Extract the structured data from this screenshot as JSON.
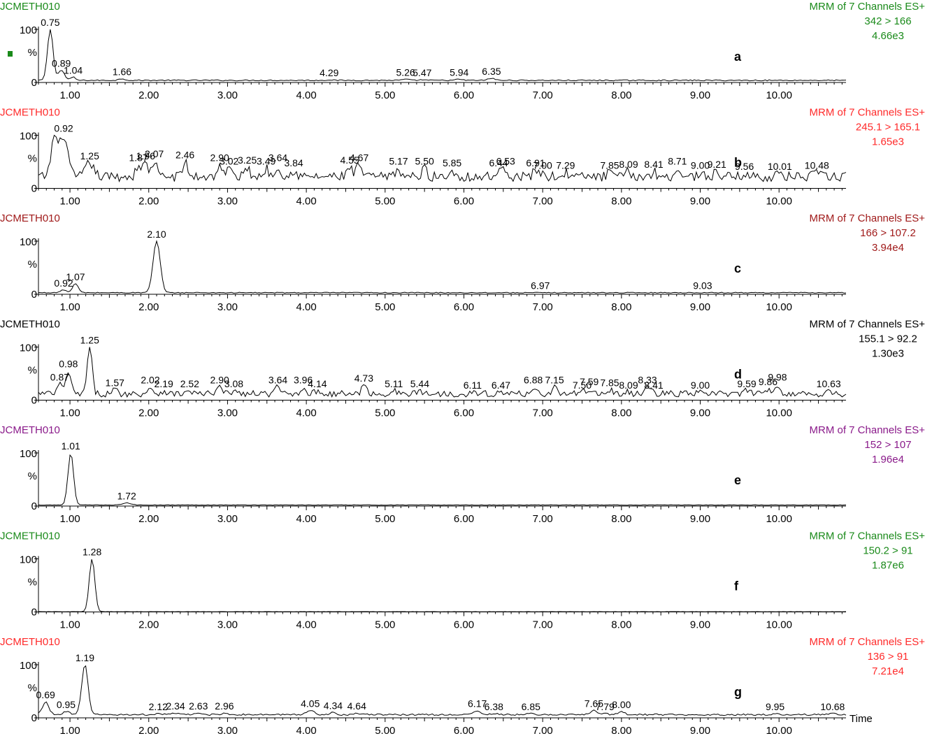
{
  "x_axis_label": "Time",
  "chart_data": [
    {
      "type": "line",
      "panel_label": "a",
      "sample": "JCMETH010",
      "header": "MRM of 7 Channels ES+",
      "transition": "342 > 166",
      "intensity": "4.66e3",
      "color": "#1a8a1a",
      "ylabel": "%",
      "y_ticks": [
        "0",
        "100"
      ],
      "xlim": [
        0.6,
        10.85
      ],
      "ylim": [
        0,
        100
      ],
      "x_ticks": [
        "1.00",
        "2.00",
        "3.00",
        "4.00",
        "5.00",
        "6.00",
        "7.00",
        "8.00",
        "9.00",
        "10.00"
      ],
      "baseline": 4,
      "noise": 1,
      "peaks": [
        {
          "x": 0.75,
          "y": 100,
          "w": 0.035,
          "label": "0.75"
        },
        {
          "x": 0.89,
          "y": 23,
          "w": 0.04,
          "label": "0.89"
        },
        {
          "x": 1.04,
          "y": 10,
          "w": 0.03,
          "label": "1.04"
        },
        {
          "x": 1.66,
          "y": 7,
          "w": 0.04,
          "label": "1.66"
        },
        {
          "x": 4.29,
          "y": 5,
          "w": 0.04,
          "label": "4.29"
        },
        {
          "x": 5.26,
          "y": 6,
          "w": 0.04,
          "label": "5.26"
        },
        {
          "x": 5.47,
          "y": 5,
          "w": 0.04,
          "label": "5.47"
        },
        {
          "x": 5.94,
          "y": 6,
          "w": 0.04,
          "label": "5.94"
        },
        {
          "x": 6.35,
          "y": 8,
          "w": 0.04,
          "label": "6.35"
        }
      ]
    },
    {
      "type": "line",
      "panel_label": "b",
      "sample": "JCMETH010",
      "header": "MRM of 7 Channels ES+",
      "transition": "245.1 > 165.1",
      "intensity": "1.65e3",
      "color": "#ff2a2a",
      "ylabel": "%",
      "y_ticks": [
        "0",
        "100"
      ],
      "xlim": [
        0.6,
        10.85
      ],
      "ylim": [
        0,
        100
      ],
      "x_ticks": [
        "1.00",
        "2.00",
        "3.00",
        "4.00",
        "5.00",
        "6.00",
        "7.00",
        "8.00",
        "9.00",
        "10.00"
      ],
      "baseline": 22,
      "noise": 9,
      "peaks": [
        {
          "x": 0.8,
          "y": 95,
          "w": 0.04,
          "label": ""
        },
        {
          "x": 0.92,
          "y": 100,
          "w": 0.05,
          "label": "0.92"
        },
        {
          "x": 1.25,
          "y": 48,
          "w": 0.05,
          "label": "1.25"
        },
        {
          "x": 1.87,
          "y": 45,
          "w": 0.03,
          "label": "1.87"
        },
        {
          "x": 1.96,
          "y": 48,
          "w": 0.03,
          "label": "1.96"
        },
        {
          "x": 2.07,
          "y": 52,
          "w": 0.03,
          "label": "2.07"
        },
        {
          "x": 2.46,
          "y": 50,
          "w": 0.03,
          "label": "2.46"
        },
        {
          "x": 2.9,
          "y": 45,
          "w": 0.03,
          "label": "2.90"
        },
        {
          "x": 3.02,
          "y": 38,
          "w": 0.03,
          "label": "3.02"
        },
        {
          "x": 3.25,
          "y": 40,
          "w": 0.03,
          "label": "3.25"
        },
        {
          "x": 3.49,
          "y": 38,
          "w": 0.03,
          "label": "3.49"
        },
        {
          "x": 3.64,
          "y": 45,
          "w": 0.03,
          "label": "3.64"
        },
        {
          "x": 3.84,
          "y": 35,
          "w": 0.03,
          "label": "3.84"
        },
        {
          "x": 4.55,
          "y": 40,
          "w": 0.03,
          "label": "4.55"
        },
        {
          "x": 4.67,
          "y": 45,
          "w": 0.03,
          "label": "4.67"
        },
        {
          "x": 5.17,
          "y": 38,
          "w": 0.03,
          "label": "5.17"
        },
        {
          "x": 5.5,
          "y": 38,
          "w": 0.03,
          "label": "5.50"
        },
        {
          "x": 5.85,
          "y": 35,
          "w": 0.03,
          "label": "5.85"
        },
        {
          "x": 6.44,
          "y": 35,
          "w": 0.03,
          "label": "6.44"
        },
        {
          "x": 6.53,
          "y": 38,
          "w": 0.03,
          "label": "6.53"
        },
        {
          "x": 6.91,
          "y": 35,
          "w": 0.03,
          "label": "6.91"
        },
        {
          "x": 7.0,
          "y": 30,
          "w": 0.03,
          "label": "7.00"
        },
        {
          "x": 7.29,
          "y": 30,
          "w": 0.03,
          "label": "7.29"
        },
        {
          "x": 7.85,
          "y": 30,
          "w": 0.03,
          "label": "7.85"
        },
        {
          "x": 8.09,
          "y": 32,
          "w": 0.03,
          "label": "8.09"
        },
        {
          "x": 8.41,
          "y": 32,
          "w": 0.03,
          "label": "8.41"
        },
        {
          "x": 8.71,
          "y": 38,
          "w": 0.03,
          "label": "8.71"
        },
        {
          "x": 9.0,
          "y": 30,
          "w": 0.03,
          "label": "9.00"
        },
        {
          "x": 9.21,
          "y": 32,
          "w": 0.03,
          "label": "9.21"
        },
        {
          "x": 9.56,
          "y": 28,
          "w": 0.03,
          "label": "9.56"
        },
        {
          "x": 10.01,
          "y": 28,
          "w": 0.03,
          "label": "10.01"
        },
        {
          "x": 10.48,
          "y": 30,
          "w": 0.03,
          "label": "10.48"
        }
      ]
    },
    {
      "type": "line",
      "panel_label": "c",
      "sample": "JCMETH010",
      "header": "MRM of 7 Channels ES+",
      "transition": "166 > 107.2",
      "intensity": "3.94e4",
      "color": "#a01a1a",
      "ylabel": "%",
      "y_ticks": [
        "0",
        "100"
      ],
      "xlim": [
        0.6,
        10.85
      ],
      "ylim": [
        0,
        100
      ],
      "x_ticks": [
        "1.00",
        "2.00",
        "3.00",
        "4.00",
        "5.00",
        "6.00",
        "7.00",
        "8.00",
        "9.00",
        "10.00"
      ],
      "baseline": 3,
      "noise": 0.8,
      "peaks": [
        {
          "x": 0.92,
          "y": 8,
          "w": 0.04,
          "label": "0.92"
        },
        {
          "x": 1.07,
          "y": 20,
          "w": 0.035,
          "label": "1.07"
        },
        {
          "x": 2.1,
          "y": 100,
          "w": 0.045,
          "label": "2.10"
        },
        {
          "x": 6.97,
          "y": 3,
          "w": 0.05,
          "label": "6.97"
        },
        {
          "x": 9.03,
          "y": 3,
          "w": 0.05,
          "label": "9.03"
        }
      ]
    },
    {
      "type": "line",
      "panel_label": "d",
      "sample": "JCMETH010",
      "header": "MRM of 7 Channels ES+",
      "transition": "155.1 > 92.2",
      "intensity": "1.30e3",
      "color": "#000000",
      "ylabel": "%",
      "y_ticks": [
        "0",
        "100"
      ],
      "xlim": [
        0.6,
        10.85
      ],
      "ylim": [
        0,
        100
      ],
      "x_ticks": [
        "1.00",
        "2.00",
        "3.00",
        "4.00",
        "5.00",
        "6.00",
        "7.00",
        "8.00",
        "9.00",
        "10.00"
      ],
      "baseline": 12,
      "noise": 6,
      "peaks": [
        {
          "x": 0.87,
          "y": 30,
          "w": 0.03,
          "label": "0.87"
        },
        {
          "x": 0.98,
          "y": 55,
          "w": 0.03,
          "label": "0.98"
        },
        {
          "x": 1.25,
          "y": 100,
          "w": 0.03,
          "label": "1.25"
        },
        {
          "x": 1.57,
          "y": 20,
          "w": 0.03,
          "label": "1.57"
        },
        {
          "x": 2.02,
          "y": 25,
          "w": 0.03,
          "label": "2.02"
        },
        {
          "x": 2.19,
          "y": 18,
          "w": 0.03,
          "label": "2.19"
        },
        {
          "x": 2.52,
          "y": 18,
          "w": 0.03,
          "label": "2.52"
        },
        {
          "x": 2.9,
          "y": 25,
          "w": 0.03,
          "label": "2.90"
        },
        {
          "x": 3.08,
          "y": 18,
          "w": 0.03,
          "label": "3.08"
        },
        {
          "x": 3.64,
          "y": 25,
          "w": 0.03,
          "label": "3.64"
        },
        {
          "x": 3.96,
          "y": 25,
          "w": 0.03,
          "label": "3.96"
        },
        {
          "x": 4.14,
          "y": 18,
          "w": 0.03,
          "label": "4.14"
        },
        {
          "x": 4.73,
          "y": 28,
          "w": 0.03,
          "label": "4.73"
        },
        {
          "x": 5.11,
          "y": 18,
          "w": 0.03,
          "label": "5.11"
        },
        {
          "x": 5.44,
          "y": 18,
          "w": 0.03,
          "label": "5.44"
        },
        {
          "x": 6.11,
          "y": 15,
          "w": 0.03,
          "label": "6.11"
        },
        {
          "x": 6.47,
          "y": 15,
          "w": 0.03,
          "label": "6.47"
        },
        {
          "x": 6.88,
          "y": 25,
          "w": 0.03,
          "label": "6.88"
        },
        {
          "x": 7.15,
          "y": 25,
          "w": 0.03,
          "label": "7.15"
        },
        {
          "x": 7.5,
          "y": 15,
          "w": 0.03,
          "label": "7.50"
        },
        {
          "x": 7.59,
          "y": 22,
          "w": 0.03,
          "label": "7.59"
        },
        {
          "x": 7.85,
          "y": 20,
          "w": 0.03,
          "label": "7.85"
        },
        {
          "x": 8.09,
          "y": 15,
          "w": 0.03,
          "label": "8.09"
        },
        {
          "x": 8.33,
          "y": 25,
          "w": 0.03,
          "label": "8.33"
        },
        {
          "x": 8.41,
          "y": 15,
          "w": 0.03,
          "label": "8.41"
        },
        {
          "x": 9.0,
          "y": 15,
          "w": 0.03,
          "label": "9.00"
        },
        {
          "x": 9.59,
          "y": 18,
          "w": 0.03,
          "label": "9.59"
        },
        {
          "x": 9.86,
          "y": 22,
          "w": 0.03,
          "label": "9.86"
        },
        {
          "x": 9.98,
          "y": 30,
          "w": 0.03,
          "label": "9.98"
        },
        {
          "x": 10.63,
          "y": 18,
          "w": 0.03,
          "label": "10.63"
        }
      ]
    },
    {
      "type": "line",
      "panel_label": "e",
      "sample": "JCMETH010",
      "header": "MRM of 7 Channels ES+",
      "transition": "152 > 107",
      "intensity": "1.96e4",
      "color": "#8a1a8a",
      "ylabel": "%",
      "y_ticks": [
        "0",
        "100"
      ],
      "xlim": [
        0.6,
        10.85
      ],
      "ylim": [
        0,
        100
      ],
      "x_ticks": [
        "1.00",
        "2.00",
        "3.00",
        "4.00",
        "5.00",
        "6.00",
        "7.00",
        "8.00",
        "9.00",
        "10.00"
      ],
      "baseline": 2,
      "noise": 0.5,
      "peaks": [
        {
          "x": 1.01,
          "y": 100,
          "w": 0.035,
          "label": "1.01"
        },
        {
          "x": 1.72,
          "y": 6,
          "w": 0.05,
          "label": "1.72"
        }
      ]
    },
    {
      "type": "line",
      "panel_label": "f",
      "sample": "JCMETH010",
      "header": "MRM of 7 Channels ES+",
      "transition": "150.2 > 91",
      "intensity": "1.87e6",
      "color": "#1a8a1a",
      "ylabel": "%",
      "y_ticks": [
        "0",
        "100"
      ],
      "xlim": [
        0.6,
        10.85
      ],
      "ylim": [
        0,
        100
      ],
      "x_ticks": [
        "1.00",
        "2.00",
        "3.00",
        "4.00",
        "5.00",
        "6.00",
        "7.00",
        "8.00",
        "9.00",
        "10.00"
      ],
      "baseline": 0.5,
      "noise": 0.2,
      "peaks": [
        {
          "x": 1.28,
          "y": 100,
          "w": 0.035,
          "label": "1.28"
        }
      ]
    },
    {
      "type": "line",
      "panel_label": "g",
      "sample": "JCMETH010",
      "header": "MRM of 7 Channels ES+",
      "transition": "136 > 91",
      "intensity": "7.21e4",
      "color": "#ff2a2a",
      "ylabel": "%",
      "y_ticks": [
        "0",
        "100"
      ],
      "xlim": [
        0.6,
        10.85
      ],
      "ylim": [
        0,
        100
      ],
      "x_ticks": [
        "1.00",
        "2.00",
        "3.00",
        "4.00",
        "5.00",
        "6.00",
        "7.00",
        "8.00",
        "9.00",
        "10.00"
      ],
      "baseline": 6,
      "noise": 1.5,
      "peaks": [
        {
          "x": 0.69,
          "y": 30,
          "w": 0.04,
          "label": "0.69"
        },
        {
          "x": 0.95,
          "y": 12,
          "w": 0.04,
          "label": "0.95"
        },
        {
          "x": 1.19,
          "y": 100,
          "w": 0.04,
          "label": "1.19"
        },
        {
          "x": 2.12,
          "y": 8,
          "w": 0.04,
          "label": "2.12"
        },
        {
          "x": 2.34,
          "y": 9,
          "w": 0.04,
          "label": "2.34"
        },
        {
          "x": 2.63,
          "y": 9,
          "w": 0.04,
          "label": "2.63"
        },
        {
          "x": 2.96,
          "y": 9,
          "w": 0.04,
          "label": "2.96"
        },
        {
          "x": 4.05,
          "y": 14,
          "w": 0.05,
          "label": "4.05"
        },
        {
          "x": 4.34,
          "y": 10,
          "w": 0.04,
          "label": "4.34"
        },
        {
          "x": 4.64,
          "y": 9,
          "w": 0.04,
          "label": "4.64"
        },
        {
          "x": 6.17,
          "y": 14,
          "w": 0.04,
          "label": "6.17"
        },
        {
          "x": 6.38,
          "y": 8,
          "w": 0.04,
          "label": "6.38"
        },
        {
          "x": 6.85,
          "y": 8,
          "w": 0.04,
          "label": "6.85"
        },
        {
          "x": 7.65,
          "y": 14,
          "w": 0.04,
          "label": "7.65"
        },
        {
          "x": 7.79,
          "y": 8,
          "w": 0.04,
          "label": "7.79"
        },
        {
          "x": 8.0,
          "y": 12,
          "w": 0.04,
          "label": "8.00"
        },
        {
          "x": 9.95,
          "y": 8,
          "w": 0.04,
          "label": "9.95"
        },
        {
          "x": 10.68,
          "y": 8,
          "w": 0.04,
          "label": "10.68"
        }
      ]
    }
  ]
}
